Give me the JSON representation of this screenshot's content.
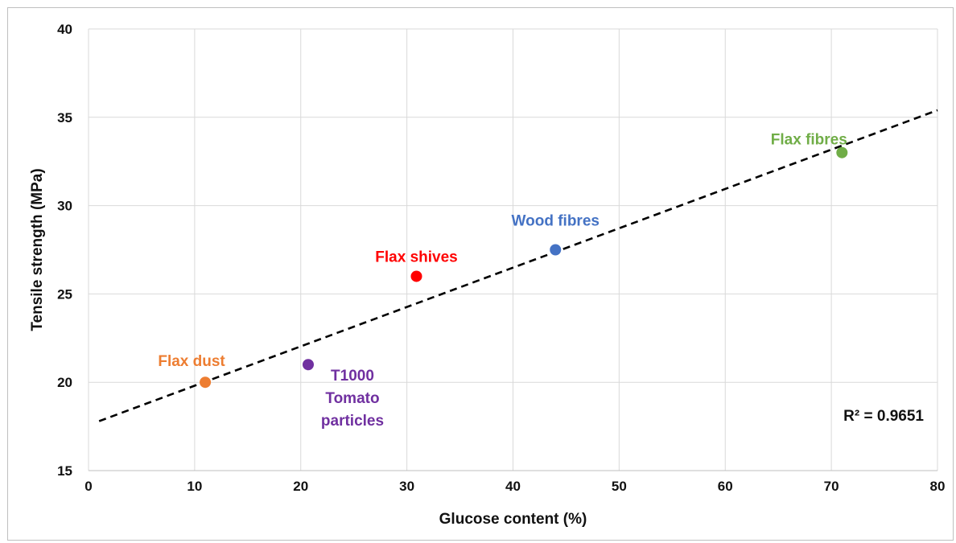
{
  "chart_data": {
    "type": "scatter",
    "title": "",
    "xlabel": "Glucose content (%)",
    "ylabel": "Tensile strength (MPa)",
    "xlim": [
      0,
      80
    ],
    "ylim": [
      15,
      40
    ],
    "xticks": [
      0,
      10,
      20,
      30,
      40,
      50,
      60,
      70,
      80
    ],
    "yticks": [
      15,
      20,
      25,
      30,
      35,
      40
    ],
    "grid": true,
    "legend": "none",
    "points": [
      {
        "label_lines": [
          "Flax dust"
        ],
        "x": 11,
        "y": 20.0,
        "color": "#ED7D31"
      },
      {
        "label_lines": [
          "T1000",
          "Tomato",
          "particles"
        ],
        "x": 20.7,
        "y": 21.0,
        "color": "#7030A0"
      },
      {
        "label_lines": [
          "Flax shives"
        ],
        "x": 30.9,
        "y": 26.0,
        "color": "#FF0000"
      },
      {
        "label_lines": [
          "Wood fibres"
        ],
        "x": 44,
        "y": 27.5,
        "color": "#4472C4"
      },
      {
        "label_lines": [
          "Flax fibres"
        ],
        "x": 71,
        "y": 33.0,
        "color": "#70AD47"
      }
    ],
    "trendline": {
      "type": "linear",
      "style": "dashed",
      "x_start": 1,
      "y_start": 17.8,
      "x_end": 80,
      "y_end": 35.4,
      "color": "#000000"
    },
    "annotation": "R² = 0.9651"
  }
}
